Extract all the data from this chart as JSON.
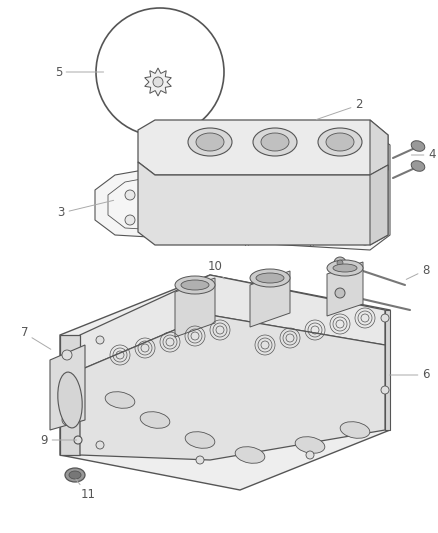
{
  "background_color": "#ffffff",
  "line_color": "#555555",
  "text_color": "#555555",
  "label_fontsize": 8.5,
  "line_width": 0.9,
  "fig_width": 4.38,
  "fig_height": 5.33,
  "dpi": 100
}
